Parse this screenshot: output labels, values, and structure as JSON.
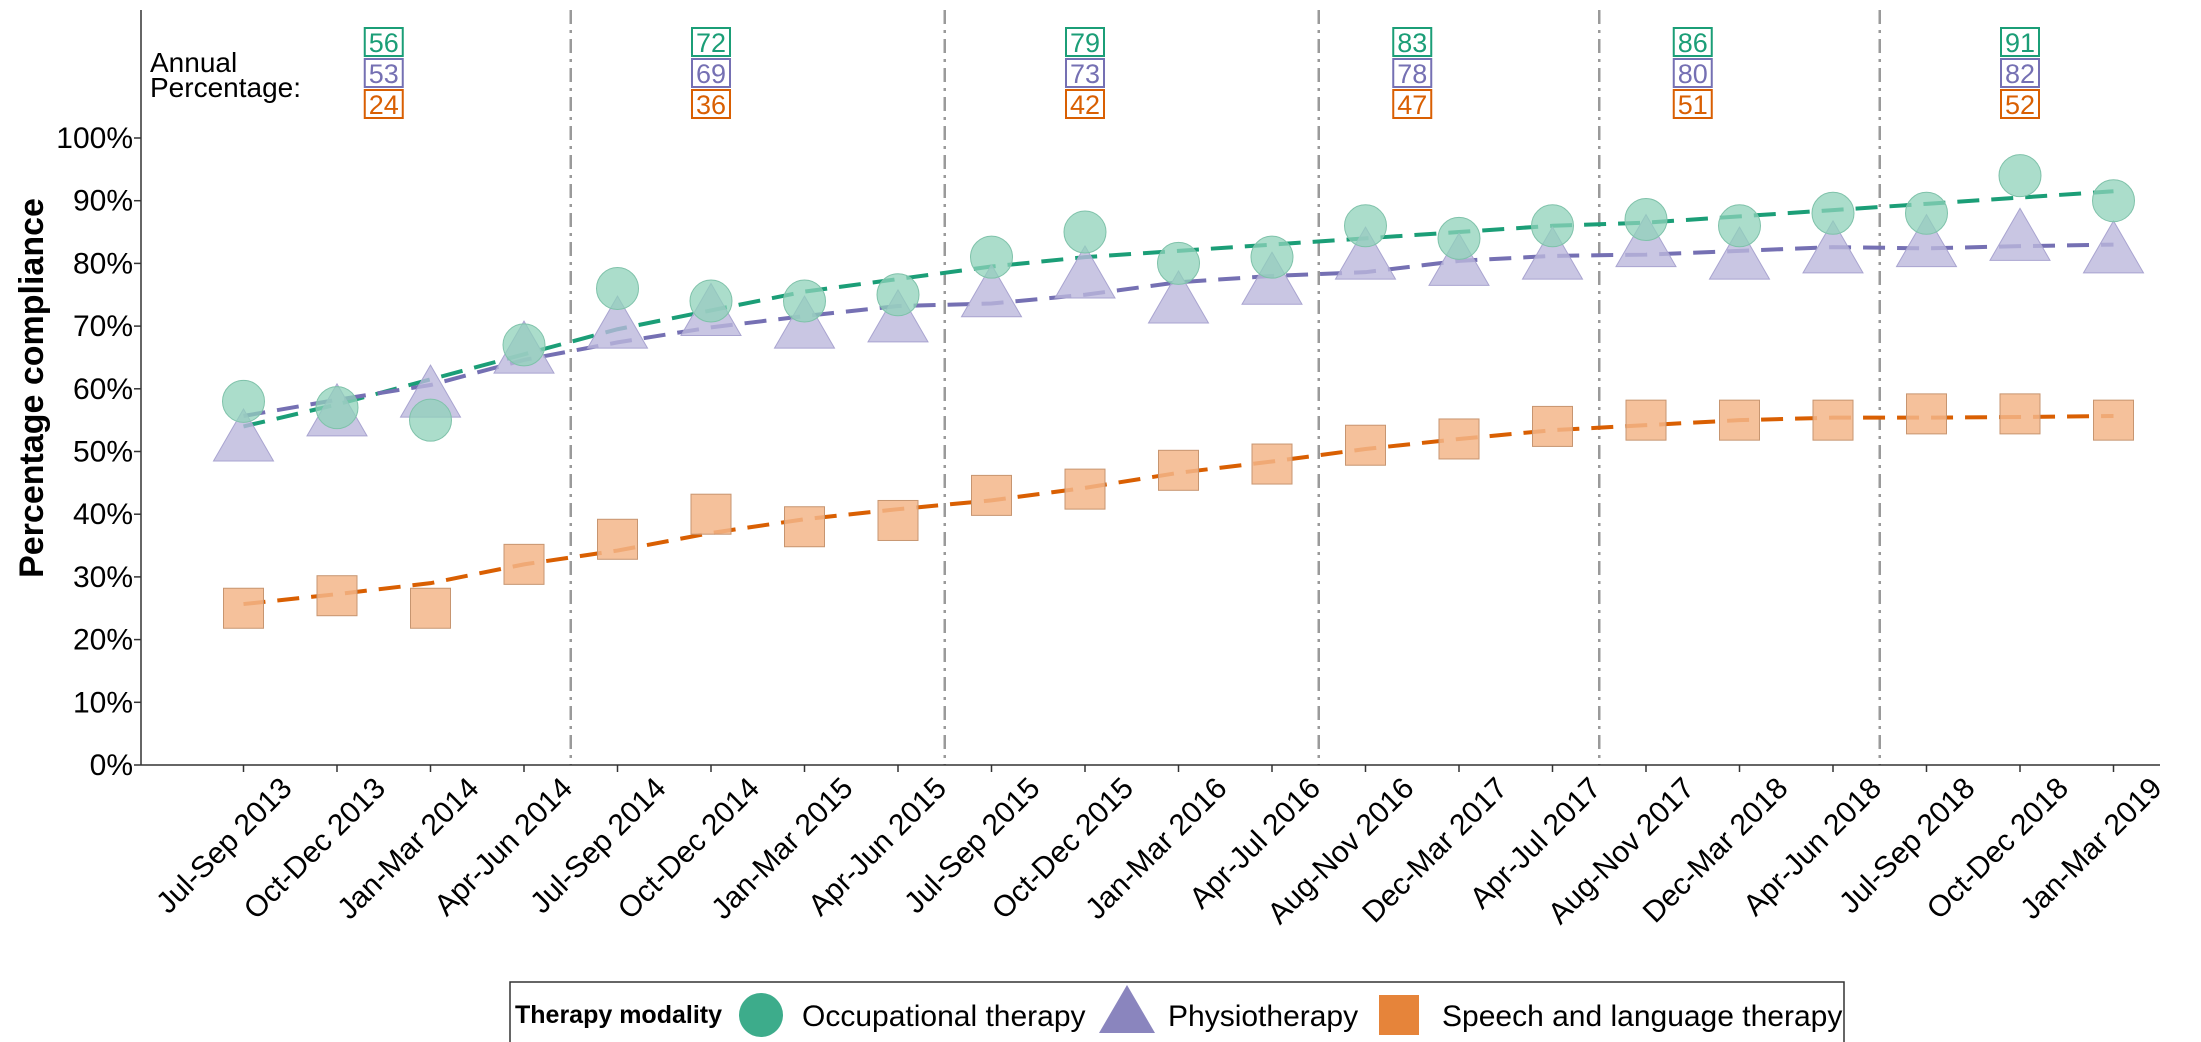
{
  "chart_data": {
    "type": "scatter",
    "title": "",
    "ylabel": "Percentage compliance",
    "xlabel": "",
    "ylim": [
      0,
      100
    ],
    "yticks": [
      "0%",
      "10%",
      "20%",
      "30%",
      "40%",
      "50%",
      "60%",
      "70%",
      "80%",
      "90%",
      "100%"
    ],
    "categories": [
      "Jul-Sep 2013",
      "Oct-Dec 2013",
      "Jan-Mar 2014",
      "Apr-Jun 2014",
      "Jul-Sep 2014",
      "Oct-Dec 2014",
      "Jan-Mar 2015",
      "Apr-Jun 2015",
      "Jul-Sep 2015",
      "Oct-Dec 2015",
      "Jan-Mar 2016",
      "Apr-Jul 2016",
      "Aug-Nov 2016",
      "Dec-Mar 2017",
      "Apr-Jul 2017",
      "Aug-Nov 2017",
      "Dec-Mar 2018",
      "Apr-Jun 2018",
      "Jul-Sep 2018",
      "Oct-Dec 2018",
      "Jan-Mar 2019"
    ],
    "series": [
      {
        "name": "Occupational therapy",
        "marker": "circle",
        "color": "#1b9e77",
        "values": [
          58,
          57,
          55,
          67,
          76,
          74,
          74,
          75,
          81,
          85,
          80,
          81,
          86,
          84,
          86,
          87,
          86,
          88,
          88,
          94,
          90
        ],
        "trend": [
          54,
          57.5,
          61.5,
          65.5,
          69.5,
          72.5,
          75.5,
          77.5,
          79.5,
          81,
          82,
          83,
          84,
          85,
          86,
          86.5,
          87.5,
          88.5,
          89.5,
          90.5,
          91.5
        ]
      },
      {
        "name": "Physiotherapy",
        "marker": "triangle",
        "color": "#7570b3",
        "values": [
          52,
          56,
          59,
          66,
          70,
          72,
          70,
          71,
          75,
          78,
          74,
          77,
          81,
          80,
          81,
          83,
          81,
          82,
          83,
          84,
          82
        ]
      },
      {
        "name": "Speech and language therapy",
        "marker": "square",
        "color": "#d95f02",
        "values": [
          25,
          27,
          25,
          32,
          36,
          40,
          38,
          39,
          43,
          44,
          47,
          48,
          51,
          52,
          54,
          55,
          55,
          55,
          56,
          56,
          55
        ]
      }
    ],
    "period_dividers_after": [
      3,
      7,
      11,
      14,
      17
    ],
    "annual_percentage": {
      "label": [
        "Annual",
        "Percentage:"
      ],
      "positions": [
        1.5,
        5,
        9,
        12.5,
        15.5,
        19
      ],
      "occupational": [
        "56",
        "72",
        "79",
        "83",
        "86",
        "91"
      ],
      "physiotherapy": [
        "53",
        "69",
        "73",
        "78",
        "80",
        "82"
      ],
      "speech": [
        "24",
        "36",
        "42",
        "47",
        "51",
        "52"
      ]
    },
    "legend": {
      "placement": "bottom",
      "title": "Therapy modality",
      "entries": [
        "Occupational therapy",
        "Physiotherapy",
        "Speech and language therapy"
      ]
    },
    "grid": false
  }
}
